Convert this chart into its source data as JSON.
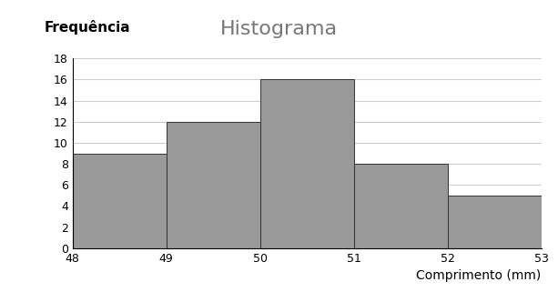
{
  "title": "Histograma",
  "xlabel": "Comprimento (mm)",
  "ylabel": "Frequência",
  "bar_left_edges": [
    48,
    49,
    50,
    51,
    52
  ],
  "bar_heights": [
    9,
    12,
    16,
    8,
    5
  ],
  "bar_width": 1,
  "bar_color": "#999999",
  "bar_edgecolor": "#333333",
  "xlim": [
    48,
    53
  ],
  "ylim": [
    0,
    18
  ],
  "xticks": [
    48,
    49,
    50,
    51,
    52,
    53
  ],
  "yticks": [
    0,
    2,
    4,
    6,
    8,
    10,
    12,
    14,
    16,
    18
  ],
  "grid_color": "#cccccc",
  "title_fontsize": 16,
  "title_color": "#777777",
  "axis_label_fontsize": 10,
  "tick_fontsize": 9,
  "ylabel_fontsize": 11,
  "background_color": "#ffffff",
  "fig_width": 6.13,
  "fig_height": 3.21,
  "dpi": 100
}
